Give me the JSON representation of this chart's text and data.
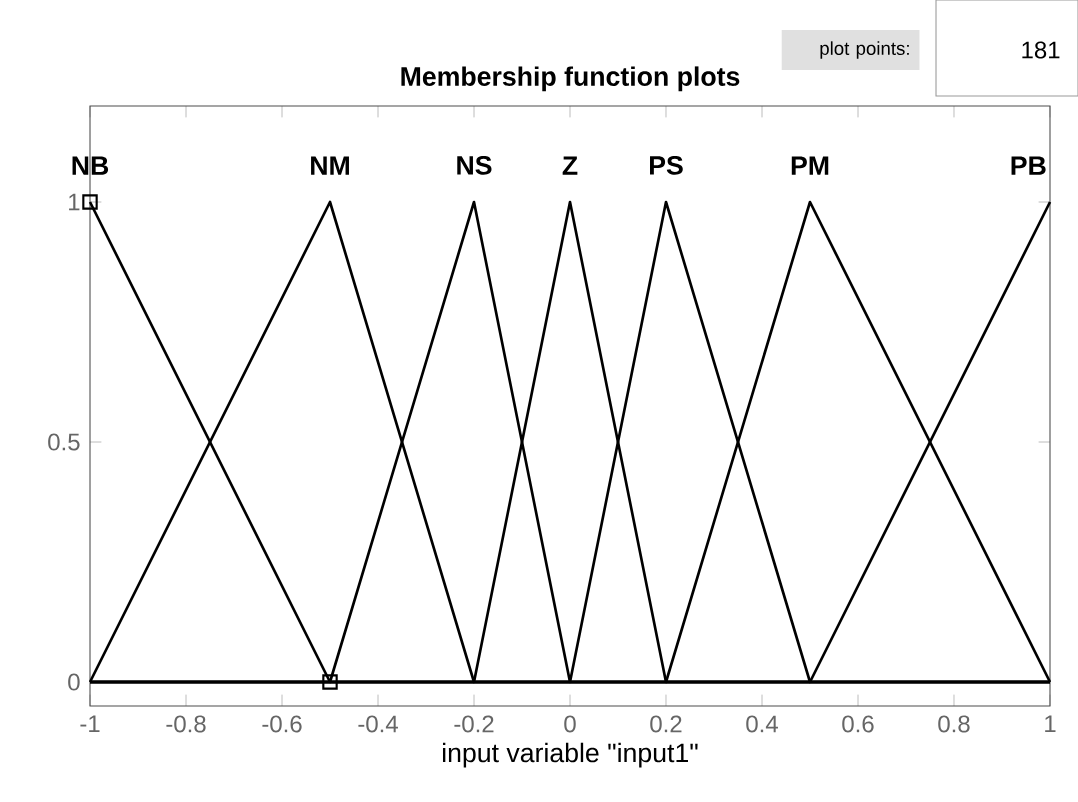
{
  "chart_data": {
    "type": "line",
    "title": "Membership function plots",
    "xlabel": "input variable \"input1\"",
    "xlim": [
      -1,
      1
    ],
    "ylim": [
      -0.05,
      1.2
    ],
    "xticks": [
      -1,
      -0.8,
      -0.6,
      -0.4,
      -0.2,
      0,
      0.2,
      0.4,
      0.6,
      0.8,
      1
    ],
    "yticks": [
      0,
      0.5,
      1
    ],
    "grid": false,
    "marker": "none",
    "line_style": "solid",
    "series": [
      {
        "name": "NB",
        "color": "#000000",
        "x": [
          -1,
          -0.5,
          1
        ],
        "values": [
          1,
          0,
          0
        ]
      },
      {
        "name": "NM",
        "color": "#000000",
        "x": [
          -1,
          -0.5,
          -0.2,
          1
        ],
        "values": [
          0,
          1,
          0,
          0
        ]
      },
      {
        "name": "NS",
        "color": "#000000",
        "x": [
          -1,
          -0.5,
          -0.2,
          0,
          1
        ],
        "values": [
          0,
          0,
          1,
          0,
          0
        ]
      },
      {
        "name": "Z",
        "color": "#000000",
        "x": [
          -1,
          -0.2,
          0,
          0.2,
          1
        ],
        "values": [
          0,
          0,
          1,
          0,
          0
        ]
      },
      {
        "name": "PS",
        "color": "#000000",
        "x": [
          -1,
          0,
          0.2,
          0.5,
          1
        ],
        "values": [
          0,
          0,
          1,
          0,
          0
        ]
      },
      {
        "name": "PM",
        "color": "#000000",
        "x": [
          -1,
          0.2,
          0.5,
          1
        ],
        "values": [
          0,
          0,
          1,
          0
        ]
      },
      {
        "name": "PB",
        "color": "#000000",
        "x": [
          -1,
          0.5,
          1
        ],
        "values": [
          0,
          0,
          1
        ]
      },
      {
        "type": "scatter",
        "marker": "square",
        "color": "#000000",
        "x": [
          -1,
          -0.5
        ],
        "values": [
          1,
          0
        ]
      }
    ],
    "annotations": [
      "plot points:",
      "181"
    ]
  }
}
